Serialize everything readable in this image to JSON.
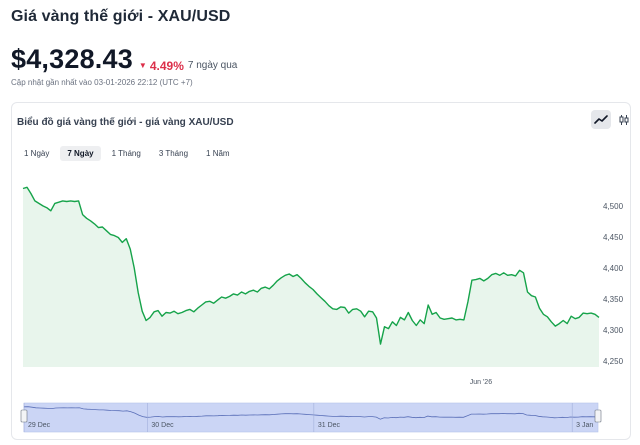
{
  "header": {
    "title": "Giá vàng thế giới - XAU/USD",
    "price": "$4,328.43",
    "change": "4.49%",
    "change_arrow": "▼",
    "period": "7 ngày qua",
    "updated": "Cập nhật gần nhất vào 03-01-2026 22:12 (UTC +7)"
  },
  "chart_card": {
    "title": "Biểu đồ giá vàng thế giới - giá vàng XAU/USD",
    "toggles": [
      {
        "name": "line-chart-icon",
        "active": true
      },
      {
        "name": "candlestick-icon",
        "active": false
      }
    ],
    "ranges": [
      "1 Ngày",
      "7 Ngày",
      "1 Tháng",
      "3 Tháng",
      "1 Năm"
    ],
    "active_range": "7 Ngày"
  },
  "colors": {
    "line": "#16a34a",
    "fill": "#e8f5ec",
    "negative": "#dc2f4a",
    "navigator_fill": "#cbd5f5"
  },
  "chart_data": {
    "type": "area",
    "ylim": [
      4240,
      4545
    ],
    "yticks": [
      4500,
      4450,
      4400,
      4350,
      4300,
      4250
    ],
    "xticks": [
      {
        "label": "Jun '26",
        "pos": 0.795
      }
    ],
    "navigator_labels": [
      {
        "label": "29 Dec",
        "pos": 0.0
      },
      {
        "label": "30 Dec",
        "pos": 0.215
      },
      {
        "label": "31 Dec",
        "pos": 0.505
      },
      {
        "label": "3 Jan",
        "pos": 0.955
      }
    ],
    "values": [
      4528,
      4530,
      4520,
      4508,
      4504,
      4500,
      4497,
      4492,
      4504,
      4506,
      4508,
      4507,
      4508,
      4507,
      4508,
      4486,
      4480,
      4476,
      4471,
      4465,
      4466,
      4460,
      4454,
      4452,
      4449,
      4441,
      4447,
      4430,
      4400,
      4360,
      4330,
      4315,
      4320,
      4329,
      4331,
      4322,
      4328,
      4327,
      4330,
      4326,
      4328,
      4331,
      4333,
      4329,
      4335,
      4340,
      4345,
      4346,
      4343,
      4348,
      4353,
      4351,
      4354,
      4358,
      4356,
      4361,
      4358,
      4362,
      4364,
      4361,
      4367,
      4369,
      4366,
      4372,
      4379,
      4384,
      4388,
      4390,
      4386,
      4389,
      4383,
      4376,
      4370,
      4365,
      4358,
      4352,
      4346,
      4339,
      4334,
      4333,
      4337,
      4336,
      4327,
      4333,
      4334,
      4330,
      4321,
      4330,
      4329,
      4319,
      4277,
      4305,
      4302,
      4313,
      4307,
      4320,
      4316,
      4328,
      4315,
      4307,
      4316,
      4310,
      4340,
      4325,
      4328,
      4319,
      4317,
      4318,
      4319,
      4316,
      4317,
      4316,
      4345,
      4380,
      4381,
      4383,
      4379,
      4383,
      4389,
      4391,
      4388,
      4392,
      4388,
      4389,
      4387,
      4396,
      4392,
      4361,
      4355,
      4353,
      4335,
      4325,
      4321,
      4313,
      4306,
      4310,
      4315,
      4310,
      4322,
      4318,
      4320,
      4327,
      4326,
      4327,
      4325,
      4320
    ]
  }
}
